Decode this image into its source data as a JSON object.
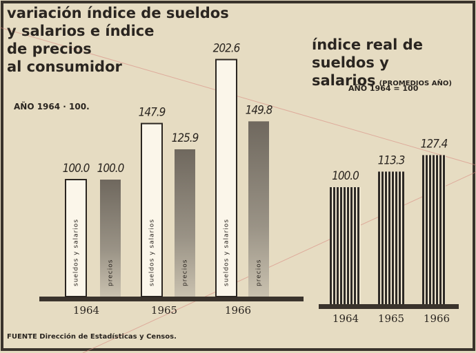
{
  "chart_data": [
    {
      "type": "bar",
      "title": "variación índice de sueldos\ny salarios e índice\nde precios\nal consumidor",
      "subtitle": "AÑO 1964 · 100.",
      "categories": [
        "1964",
        "1965",
        "1966"
      ],
      "series": [
        {
          "name": "sueldos y salarios",
          "color": "#fbf6ea",
          "values": [
            100.0,
            147.9,
            202.6
          ],
          "value_labels": [
            "100.0",
            "147.9",
            "202.6"
          ]
        },
        {
          "name": "precios",
          "color": "#8f887c",
          "values": [
            100.0,
            125.9,
            149.8
          ],
          "value_labels": [
            "100.0",
            "125.9",
            "149.8"
          ]
        }
      ]
    },
    {
      "type": "striped-bar",
      "title": "índice real de\nsueldos y\nsalarios",
      "subtitle": "(PROMEDIOS AÑO)",
      "note": "AÑO 1964 = 100",
      "categories": [
        "1964",
        "1965",
        "1966"
      ],
      "color": "#2e2a26",
      "values": [
        100.0,
        113.3,
        127.4
      ],
      "value_labels": [
        "100.0",
        "113.3",
        "127.4"
      ]
    }
  ],
  "source": "FUENTE Dirección de Estadísticas y Censos."
}
